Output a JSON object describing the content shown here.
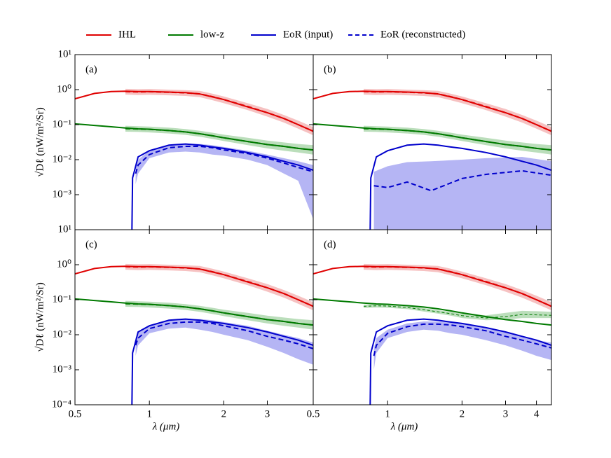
{
  "chart_data": {
    "type": "line",
    "log_x": true,
    "log_y": true,
    "xlabel": "λ (μm)",
    "ylabel": "√Dℓ (nW/m²/Sr)",
    "xlim": [
      0.5,
      4.6
    ],
    "ylim": [
      0.0001,
      10
    ],
    "yticks": [
      {
        "value": 0.0001,
        "label": "10⁻⁴"
      },
      {
        "value": 0.001,
        "label": "10⁻³"
      },
      {
        "value": 0.01,
        "label": "10⁻²"
      },
      {
        "value": 0.1,
        "label": "10⁻¹"
      },
      {
        "value": 1,
        "label": "10⁰"
      },
      {
        "value": 10,
        "label": "10¹"
      }
    ],
    "legend": [
      {
        "name": "IHL",
        "color": "#e00000"
      },
      {
        "name": "low-z",
        "color": "#007a00"
      },
      {
        "name": "EoR (input)",
        "color": "#0000cc"
      },
      {
        "name": "EoR (reconstructed)",
        "color": "#0000cc",
        "dash": true
      }
    ],
    "inputs": [
      {
        "color": "#e00000",
        "x": [
          0.5,
          0.6,
          0.7,
          0.8,
          0.9,
          1,
          1.2,
          1.4,
          1.6,
          1.8,
          2,
          2.5,
          3,
          3.5,
          4,
          4.6
        ],
        "values": [
          0.55,
          0.78,
          0.88,
          0.9,
          0.88,
          0.88,
          0.85,
          0.82,
          0.75,
          0.62,
          0.52,
          0.32,
          0.22,
          0.15,
          0.1,
          0.065
        ]
      },
      {
        "color": "#007a00",
        "x": [
          0.5,
          0.6,
          0.7,
          0.8,
          0.9,
          1,
          1.2,
          1.4,
          1.6,
          1.8,
          2,
          2.5,
          3,
          3.5,
          4,
          4.6
        ],
        "values": [
          0.105,
          0.095,
          0.087,
          0.08,
          0.076,
          0.074,
          0.068,
          0.062,
          0.055,
          0.048,
          0.042,
          0.033,
          0.027,
          0.024,
          0.021,
          0.019
        ]
      },
      {
        "color": "#0000cc",
        "x": [
          0.85,
          0.855,
          0.9,
          1,
          1.2,
          1.4,
          1.6,
          1.8,
          2,
          2.5,
          3,
          3.5,
          4,
          4.6
        ],
        "values": [
          0.0001,
          0.003,
          0.012,
          0.018,
          0.026,
          0.028,
          0.026,
          0.023,
          0.021,
          0.016,
          0.012,
          0.009,
          0.007,
          0.005
        ]
      }
    ],
    "panels": [
      {
        "label": "(a)",
        "xticks": [
          0.5,
          1,
          2,
          3
        ],
        "series": [
          {
            "color": "#e00000",
            "band": "rgba(230,80,80,0.35)",
            "x": [
              0.8,
              0.9,
              1,
              1.2,
              1.4,
              1.6,
              1.8,
              2,
              2.5,
              3,
              3.5,
              4,
              4.6
            ],
            "values": [
              0.88,
              0.86,
              0.87,
              0.84,
              0.81,
              0.76,
              0.63,
              0.52,
              0.33,
              0.22,
              0.15,
              0.1,
              0.065
            ],
            "lower": [
              0.72,
              0.7,
              0.71,
              0.69,
              0.66,
              0.61,
              0.5,
              0.41,
              0.26,
              0.17,
              0.115,
              0.077,
              0.05
            ],
            "upper": [
              1.05,
              1.03,
              1.04,
              1.0,
              0.97,
              0.92,
              0.77,
              0.64,
              0.41,
              0.28,
              0.19,
              0.13,
              0.085
            ]
          },
          {
            "color": "#007a00",
            "band": "rgba(60,160,60,0.35)",
            "x": [
              0.8,
              0.9,
              1,
              1.2,
              1.4,
              1.6,
              1.8,
              2,
              2.5,
              3,
              3.5,
              4,
              4.6
            ],
            "values": [
              0.077,
              0.075,
              0.073,
              0.068,
              0.062,
              0.055,
              0.048,
              0.042,
              0.033,
              0.027,
              0.024,
              0.021,
              0.019
            ],
            "lower": [
              0.063,
              0.062,
              0.06,
              0.056,
              0.051,
              0.045,
              0.039,
              0.034,
              0.026,
              0.021,
              0.018,
              0.016,
              0.014
            ],
            "upper": [
              0.093,
              0.09,
              0.088,
              0.082,
              0.075,
              0.067,
              0.059,
              0.052,
              0.042,
              0.035,
              0.031,
              0.028,
              0.026
            ]
          },
          {
            "color": "#0000cc",
            "band": "rgba(90,90,230,0.45)",
            "x": [
              0.88,
              0.9,
              1,
              1.2,
              1.4,
              1.6,
              1.8,
              2,
              2.5,
              3,
              3.5,
              4,
              4.6
            ],
            "values": [
              0.004,
              0.007,
              0.014,
              0.022,
              0.024,
              0.024,
              0.022,
              0.019,
              0.015,
              0.011,
              0.008,
              0.006,
              0.0045
            ],
            "lower": [
              0.002,
              0.004,
              0.011,
              0.016,
              0.017,
              0.016,
              0.014,
              0.013,
              0.01,
              0.007,
              0.004,
              0.0025,
              0.0002
            ],
            "upper": [
              0.006,
              0.01,
              0.018,
              0.026,
              0.029,
              0.028,
              0.026,
              0.023,
              0.018,
              0.014,
              0.011,
              0.009,
              0.007
            ]
          }
        ]
      },
      {
        "label": "(b)",
        "xticks": [
          0.5,
          1,
          2,
          3,
          4
        ],
        "series": [
          {
            "color": "#e00000",
            "band": "rgba(230,80,80,0.35)",
            "x": [
              0.8,
              0.9,
              1,
              1.2,
              1.4,
              1.6,
              1.8,
              2,
              2.5,
              3,
              3.5,
              4,
              4.6
            ],
            "values": [
              0.88,
              0.86,
              0.87,
              0.84,
              0.81,
              0.76,
              0.63,
              0.52,
              0.33,
              0.22,
              0.15,
              0.1,
              0.065
            ],
            "lower": [
              0.72,
              0.7,
              0.71,
              0.69,
              0.66,
              0.61,
              0.5,
              0.41,
              0.26,
              0.17,
              0.115,
              0.077,
              0.05
            ],
            "upper": [
              1.05,
              1.03,
              1.04,
              1.0,
              0.97,
              0.92,
              0.77,
              0.64,
              0.41,
              0.28,
              0.19,
              0.13,
              0.085
            ]
          },
          {
            "color": "#007a00",
            "band": "rgba(60,160,60,0.35)",
            "x": [
              0.8,
              0.9,
              1,
              1.2,
              1.4,
              1.6,
              1.8,
              2,
              2.5,
              3,
              3.5,
              4,
              4.6
            ],
            "values": [
              0.077,
              0.075,
              0.073,
              0.068,
              0.062,
              0.055,
              0.048,
              0.042,
              0.033,
              0.027,
              0.024,
              0.021,
              0.019
            ],
            "lower": [
              0.063,
              0.062,
              0.06,
              0.056,
              0.051,
              0.045,
              0.039,
              0.034,
              0.026,
              0.021,
              0.018,
              0.016,
              0.014
            ],
            "upper": [
              0.093,
              0.09,
              0.088,
              0.082,
              0.075,
              0.067,
              0.059,
              0.052,
              0.042,
              0.035,
              0.031,
              0.028,
              0.026
            ]
          },
          {
            "color": "#0000cc",
            "band": "rgba(90,90,230,0.45)",
            "x": [
              0.88,
              1,
              1.2,
              1.5,
              2,
              2.5,
              3.5,
              4.6
            ],
            "values": [
              0.0018,
              0.0016,
              0.0023,
              0.0013,
              0.0029,
              0.0038,
              0.0048,
              0.0036
            ],
            "lower": [
              0.0001,
              0.0001,
              0.0001,
              0.0001,
              0.0001,
              0.0001,
              0.0001,
              0.0001
            ],
            "upper": [
              0.0045,
              0.0065,
              0.0085,
              0.009,
              0.01,
              0.011,
              0.012,
              0.009
            ]
          }
        ]
      },
      {
        "label": "(c)",
        "xticks": [
          0.5,
          1,
          2,
          3
        ],
        "series": [
          {
            "color": "#e00000",
            "band": "rgba(230,80,80,0.35)",
            "x": [
              0.8,
              0.9,
              1,
              1.2,
              1.4,
              1.6,
              1.8,
              2,
              2.5,
              3,
              3.5,
              4,
              4.6
            ],
            "values": [
              0.88,
              0.86,
              0.87,
              0.84,
              0.81,
              0.76,
              0.63,
              0.52,
              0.33,
              0.22,
              0.15,
              0.1,
              0.065
            ],
            "lower": [
              0.72,
              0.7,
              0.71,
              0.69,
              0.66,
              0.61,
              0.5,
              0.41,
              0.26,
              0.17,
              0.115,
              0.077,
              0.05
            ],
            "upper": [
              1.05,
              1.03,
              1.04,
              1.0,
              0.97,
              0.92,
              0.77,
              0.64,
              0.41,
              0.28,
              0.19,
              0.13,
              0.085
            ]
          },
          {
            "color": "#007a00",
            "band": "rgba(60,160,60,0.35)",
            "x": [
              0.8,
              0.9,
              1,
              1.2,
              1.4,
              1.6,
              1.8,
              2,
              2.5,
              3,
              3.5,
              4,
              4.6
            ],
            "values": [
              0.077,
              0.075,
              0.073,
              0.068,
              0.062,
              0.055,
              0.048,
              0.042,
              0.033,
              0.027,
              0.024,
              0.021,
              0.019
            ],
            "lower": [
              0.063,
              0.062,
              0.06,
              0.056,
              0.051,
              0.045,
              0.039,
              0.034,
              0.026,
              0.021,
              0.018,
              0.016,
              0.014
            ],
            "upper": [
              0.093,
              0.09,
              0.088,
              0.082,
              0.075,
              0.067,
              0.059,
              0.052,
              0.042,
              0.035,
              0.031,
              0.028,
              0.026
            ]
          },
          {
            "color": "#0000cc",
            "band": "rgba(90,90,230,0.45)",
            "x": [
              0.88,
              0.9,
              1,
              1.2,
              1.4,
              1.6,
              1.8,
              2,
              2.5,
              3,
              3.5,
              4,
              4.6
            ],
            "values": [
              0.005,
              0.008,
              0.015,
              0.021,
              0.023,
              0.023,
              0.021,
              0.018,
              0.013,
              0.009,
              0.007,
              0.0055,
              0.004
            ],
            "lower": [
              0.0025,
              0.005,
              0.011,
              0.015,
              0.016,
              0.014,
              0.012,
              0.01,
              0.007,
              0.0045,
              0.003,
              0.002,
              0.0014
            ],
            "upper": [
              0.008,
              0.012,
              0.019,
              0.026,
              0.028,
              0.028,
              0.026,
              0.023,
              0.018,
              0.013,
              0.01,
              0.008,
              0.006
            ]
          }
        ]
      },
      {
        "label": "(d)",
        "xticks": [
          0.5,
          1,
          2,
          3,
          4
        ],
        "series": [
          {
            "color": "#e00000",
            "band": "rgba(230,80,80,0.35)",
            "x": [
              0.8,
              0.9,
              1,
              1.2,
              1.4,
              1.6,
              1.8,
              2,
              2.5,
              3,
              3.5,
              4,
              4.6
            ],
            "values": [
              0.88,
              0.86,
              0.87,
              0.84,
              0.81,
              0.76,
              0.63,
              0.52,
              0.33,
              0.22,
              0.15,
              0.1,
              0.065
            ],
            "lower": [
              0.72,
              0.7,
              0.71,
              0.69,
              0.66,
              0.61,
              0.5,
              0.41,
              0.26,
              0.17,
              0.115,
              0.077,
              0.05
            ],
            "upper": [
              1.05,
              1.03,
              1.04,
              1.0,
              0.97,
              0.92,
              0.77,
              0.64,
              0.41,
              0.28,
              0.19,
              0.13,
              0.085
            ]
          },
          {
            "color": "#007a00",
            "band": "rgba(60,160,60,0.35)",
            "thin": true,
            "x": [
              0.8,
              0.9,
              1,
              1.2,
              1.4,
              1.6,
              1.8,
              2,
              2.5,
              3,
              3.5,
              4,
              4.6
            ],
            "values": [
              0.065,
              0.067,
              0.066,
              0.06,
              0.052,
              0.045,
              0.04,
              0.035,
              0.03,
              0.033,
              0.038,
              0.037,
              0.036
            ],
            "lower": [
              0.058,
              0.06,
              0.059,
              0.054,
              0.046,
              0.04,
              0.035,
              0.03,
              0.026,
              0.027,
              0.03,
              0.03,
              0.03
            ],
            "upper": [
              0.072,
              0.074,
              0.073,
              0.067,
              0.058,
              0.05,
              0.045,
              0.04,
              0.036,
              0.042,
              0.048,
              0.047,
              0.045
            ]
          },
          {
            "color": "#0000cc",
            "band": "rgba(90,90,230,0.45)",
            "x": [
              0.88,
              0.9,
              1,
              1.2,
              1.4,
              1.6,
              1.8,
              2,
              2.5,
              3,
              3.5,
              4,
              4.6
            ],
            "values": [
              0.0025,
              0.005,
              0.011,
              0.017,
              0.02,
              0.02,
              0.019,
              0.017,
              0.013,
              0.009,
              0.007,
              0.0055,
              0.0042
            ],
            "lower": [
              0.001,
              0.003,
              0.008,
              0.012,
              0.014,
              0.013,
              0.011,
              0.01,
              0.007,
              0.005,
              0.0035,
              0.0025,
              0.0019
            ],
            "upper": [
              0.004,
              0.008,
              0.014,
              0.021,
              0.024,
              0.024,
              0.023,
              0.021,
              0.016,
              0.012,
              0.009,
              0.007,
              0.006
            ]
          }
        ]
      }
    ]
  }
}
